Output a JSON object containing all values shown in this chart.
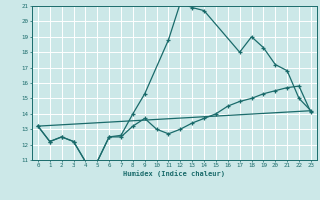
{
  "xlabel": "Humidex (Indice chaleur)",
  "xlim": [
    -0.5,
    23.5
  ],
  "ylim": [
    11,
    21
  ],
  "xticks": [
    0,
    1,
    2,
    3,
    4,
    5,
    6,
    7,
    8,
    9,
    10,
    11,
    12,
    13,
    14,
    15,
    16,
    17,
    18,
    19,
    20,
    21,
    22,
    23
  ],
  "yticks": [
    11,
    12,
    13,
    14,
    15,
    16,
    17,
    18,
    19,
    20,
    21
  ],
  "bg_color": "#cce8e8",
  "line_color": "#1a6b6b",
  "grid_color": "#ffffff",
  "line1_x": [
    0,
    1,
    2,
    3,
    4,
    5,
    6,
    7,
    8,
    9,
    11,
    12,
    13,
    14,
    17,
    18,
    19,
    20,
    21,
    22,
    23
  ],
  "line1_y": [
    13.2,
    12.2,
    12.5,
    12.2,
    10.9,
    10.9,
    12.5,
    12.6,
    14.0,
    15.3,
    18.8,
    21.2,
    20.9,
    20.7,
    18.0,
    19.0,
    18.3,
    17.2,
    16.8,
    15.0,
    14.2
  ],
  "line2_x": [
    0,
    1,
    2,
    3,
    4,
    5,
    6,
    7,
    8,
    9,
    10,
    11,
    12,
    13,
    14,
    15,
    16,
    17,
    18,
    19,
    20,
    21,
    22,
    23
  ],
  "line2_y": [
    13.2,
    12.2,
    12.5,
    12.2,
    10.9,
    10.9,
    12.5,
    12.5,
    13.2,
    13.7,
    13.0,
    12.7,
    13.0,
    13.4,
    13.7,
    14.0,
    14.5,
    14.8,
    15.0,
    15.3,
    15.5,
    15.7,
    15.8,
    14.1
  ],
  "line3_x": [
    0,
    23
  ],
  "line3_y": [
    13.2,
    14.2
  ]
}
